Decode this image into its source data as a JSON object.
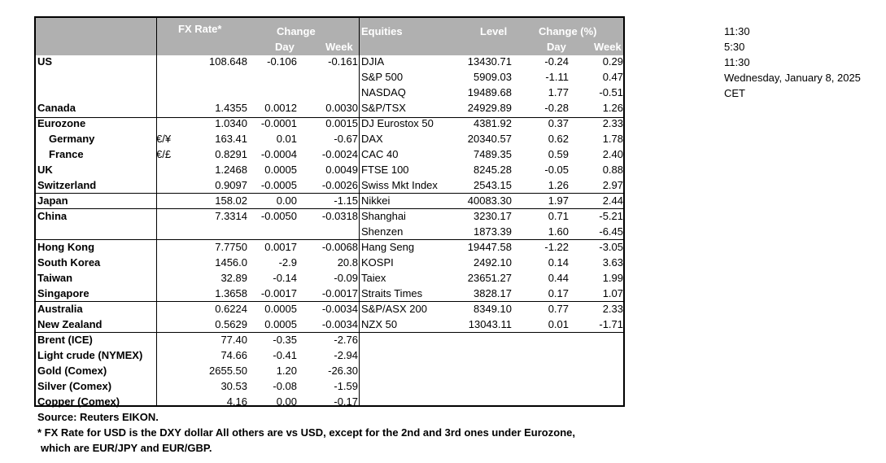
{
  "headers": {
    "fx_rate": "FX Rate*",
    "change": "Change",
    "day": "Day",
    "week": "Week",
    "equities": "Equities",
    "level": "Level",
    "change_pct": "Change (%)",
    "eq_day": "Day",
    "eq_week": "Week"
  },
  "rows": [
    {
      "name": "US",
      "cur": "",
      "fx": "108.648",
      "fx_day": "-0.106",
      "fx_week": "-0.161",
      "index": "DJIA",
      "level": "13430.71",
      "eq_day": "-0.24",
      "eq_week": "0.29"
    },
    {
      "name": "",
      "cur": "",
      "fx": "",
      "fx_day": "",
      "fx_week": "",
      "index": "S&P 500",
      "level": "5909.03",
      "eq_day": "-1.11",
      "eq_week": "0.47"
    },
    {
      "name": "",
      "cur": "",
      "fx": "",
      "fx_day": "",
      "fx_week": "",
      "index": "NASDAQ",
      "level": "19489.68",
      "eq_day": "1.77",
      "eq_week": "-0.51"
    },
    {
      "name": "Canada",
      "cur": "",
      "fx": "1.4355",
      "fx_day": "0.0012",
      "fx_week": "0.0030",
      "index": "S&P/TSX",
      "level": "24929.89",
      "eq_day": "-0.28",
      "eq_week": "1.26"
    },
    {
      "name": "Eurozone",
      "cur": "",
      "fx": "1.0340",
      "fx_day": "-0.0001",
      "fx_week": "0.0015",
      "index": "DJ Eurostox 50",
      "level": "4381.92",
      "eq_day": "0.37",
      "eq_week": "2.33"
    },
    {
      "name": "Germany",
      "cur": "€/¥",
      "fx": "163.41",
      "fx_day": "0.01",
      "fx_week": "-0.67",
      "index": "DAX",
      "level": "20340.57",
      "eq_day": "0.62",
      "eq_week": "1.78"
    },
    {
      "name": "France",
      "cur": "€/£",
      "fx": "0.8291",
      "fx_day": "-0.0004",
      "fx_week": "-0.0024",
      "index": "CAC 40",
      "level": "7489.35",
      "eq_day": "0.59",
      "eq_week": "2.40"
    },
    {
      "name": "UK",
      "cur": "",
      "fx": "1.2468",
      "fx_day": "0.0005",
      "fx_week": "0.0049",
      "index": "FTSE 100",
      "level": "8245.28",
      "eq_day": "-0.05",
      "eq_week": "0.88"
    },
    {
      "name": "Switzerland",
      "cur": "",
      "fx": "0.9097",
      "fx_day": "-0.0005",
      "fx_week": "-0.0026",
      "index": "Swiss Mkt Index",
      "level": "2543.15",
      "eq_day": "1.26",
      "eq_week": "2.97"
    },
    {
      "name": "Japan",
      "cur": "",
      "fx": "158.02",
      "fx_day": "0.00",
      "fx_week": "-1.15",
      "index": "Nikkei",
      "level": "40083.30",
      "eq_day": "1.97",
      "eq_week": "2.44"
    },
    {
      "name": "China",
      "cur": "",
      "fx": "7.3314",
      "fx_day": "-0.0050",
      "fx_week": "-0.0318",
      "index": "Shanghai",
      "level": "3230.17",
      "eq_day": "0.71",
      "eq_week": "-5.21"
    },
    {
      "name": "",
      "cur": "",
      "fx": "",
      "fx_day": "",
      "fx_week": "",
      "index": "Shenzen",
      "level": "1873.39",
      "eq_day": "1.60",
      "eq_week": "-6.45"
    },
    {
      "name": "Hong Kong",
      "cur": "",
      "fx": "7.7750",
      "fx_day": "0.0017",
      "fx_week": "-0.0068",
      "index": "Hang Seng",
      "level": "19447.58",
      "eq_day": "-1.22",
      "eq_week": "-3.05"
    },
    {
      "name": "South Korea",
      "cur": "",
      "fx": "1456.0",
      "fx_day": "-2.9",
      "fx_week": "20.8",
      "index": "KOSPI",
      "level": "2492.10",
      "eq_day": "0.14",
      "eq_week": "3.63"
    },
    {
      "name": "Taiwan",
      "cur": "",
      "fx": "32.89",
      "fx_day": "-0.14",
      "fx_week": "-0.09",
      "index": "Taiex",
      "level": "23651.27",
      "eq_day": "0.44",
      "eq_week": "1.99"
    },
    {
      "name": "Singapore",
      "cur": "",
      "fx": "1.3658",
      "fx_day": "-0.0017",
      "fx_week": "-0.0017",
      "index": "Straits Times",
      "level": "3828.17",
      "eq_day": "0.17",
      "eq_week": "1.07"
    },
    {
      "name": "Australia",
      "cur": "",
      "fx": "0.6224",
      "fx_day": "0.0005",
      "fx_week": "-0.0034",
      "index": "S&P/ASX  200",
      "level": "8349.10",
      "eq_day": "0.77",
      "eq_week": "2.33"
    },
    {
      "name": "New Zealand",
      "cur": "",
      "fx": "0.5629",
      "fx_day": "0.0005",
      "fx_week": "-0.0034",
      "index": "NZX 50",
      "level": "13043.11",
      "eq_day": "0.01",
      "eq_week": "-1.71"
    },
    {
      "name": "Brent (ICE)",
      "cur": "",
      "fx": "77.40",
      "fx_day": "-0.35",
      "fx_week": "-2.76",
      "index": "",
      "level": "",
      "eq_day": "",
      "eq_week": ""
    },
    {
      "name": "Light crude (NYMEX)",
      "cur": "",
      "fx": "74.66",
      "fx_day": "-0.41",
      "fx_week": "-2.94",
      "index": "",
      "level": "",
      "eq_day": "",
      "eq_week": ""
    },
    {
      "name": "Gold (Comex)",
      "cur": "",
      "fx": "2655.50",
      "fx_day": "1.20",
      "fx_week": "-26.30",
      "index": "",
      "level": "",
      "eq_day": "",
      "eq_week": ""
    },
    {
      "name": "Silver (Comex)",
      "cur": "",
      "fx": "30.53",
      "fx_day": "-0.08",
      "fx_week": "-1.59",
      "index": "",
      "level": "",
      "eq_day": "",
      "eq_week": ""
    },
    {
      "name": "Copper (Comex)",
      "cur": "",
      "fx": "4.16",
      "fx_day": "0.00",
      "fx_week": "-0.17",
      "index": "",
      "level": "",
      "eq_day": "",
      "eq_week": ""
    }
  ],
  "side": [
    "11:30",
    "5:30",
    "11:30",
    "Wednesday, January 8, 2025",
    "CET"
  ],
  "notes": {
    "source": "Source:  Reuters EIKON.",
    "footnote1": "* FX Rate for USD is the DXY dollar  All others are vs USD, except for the 2nd and 3rd ones under Eurozone,",
    "footnote2": "which are EUR/JPY and EUR/GBP."
  }
}
